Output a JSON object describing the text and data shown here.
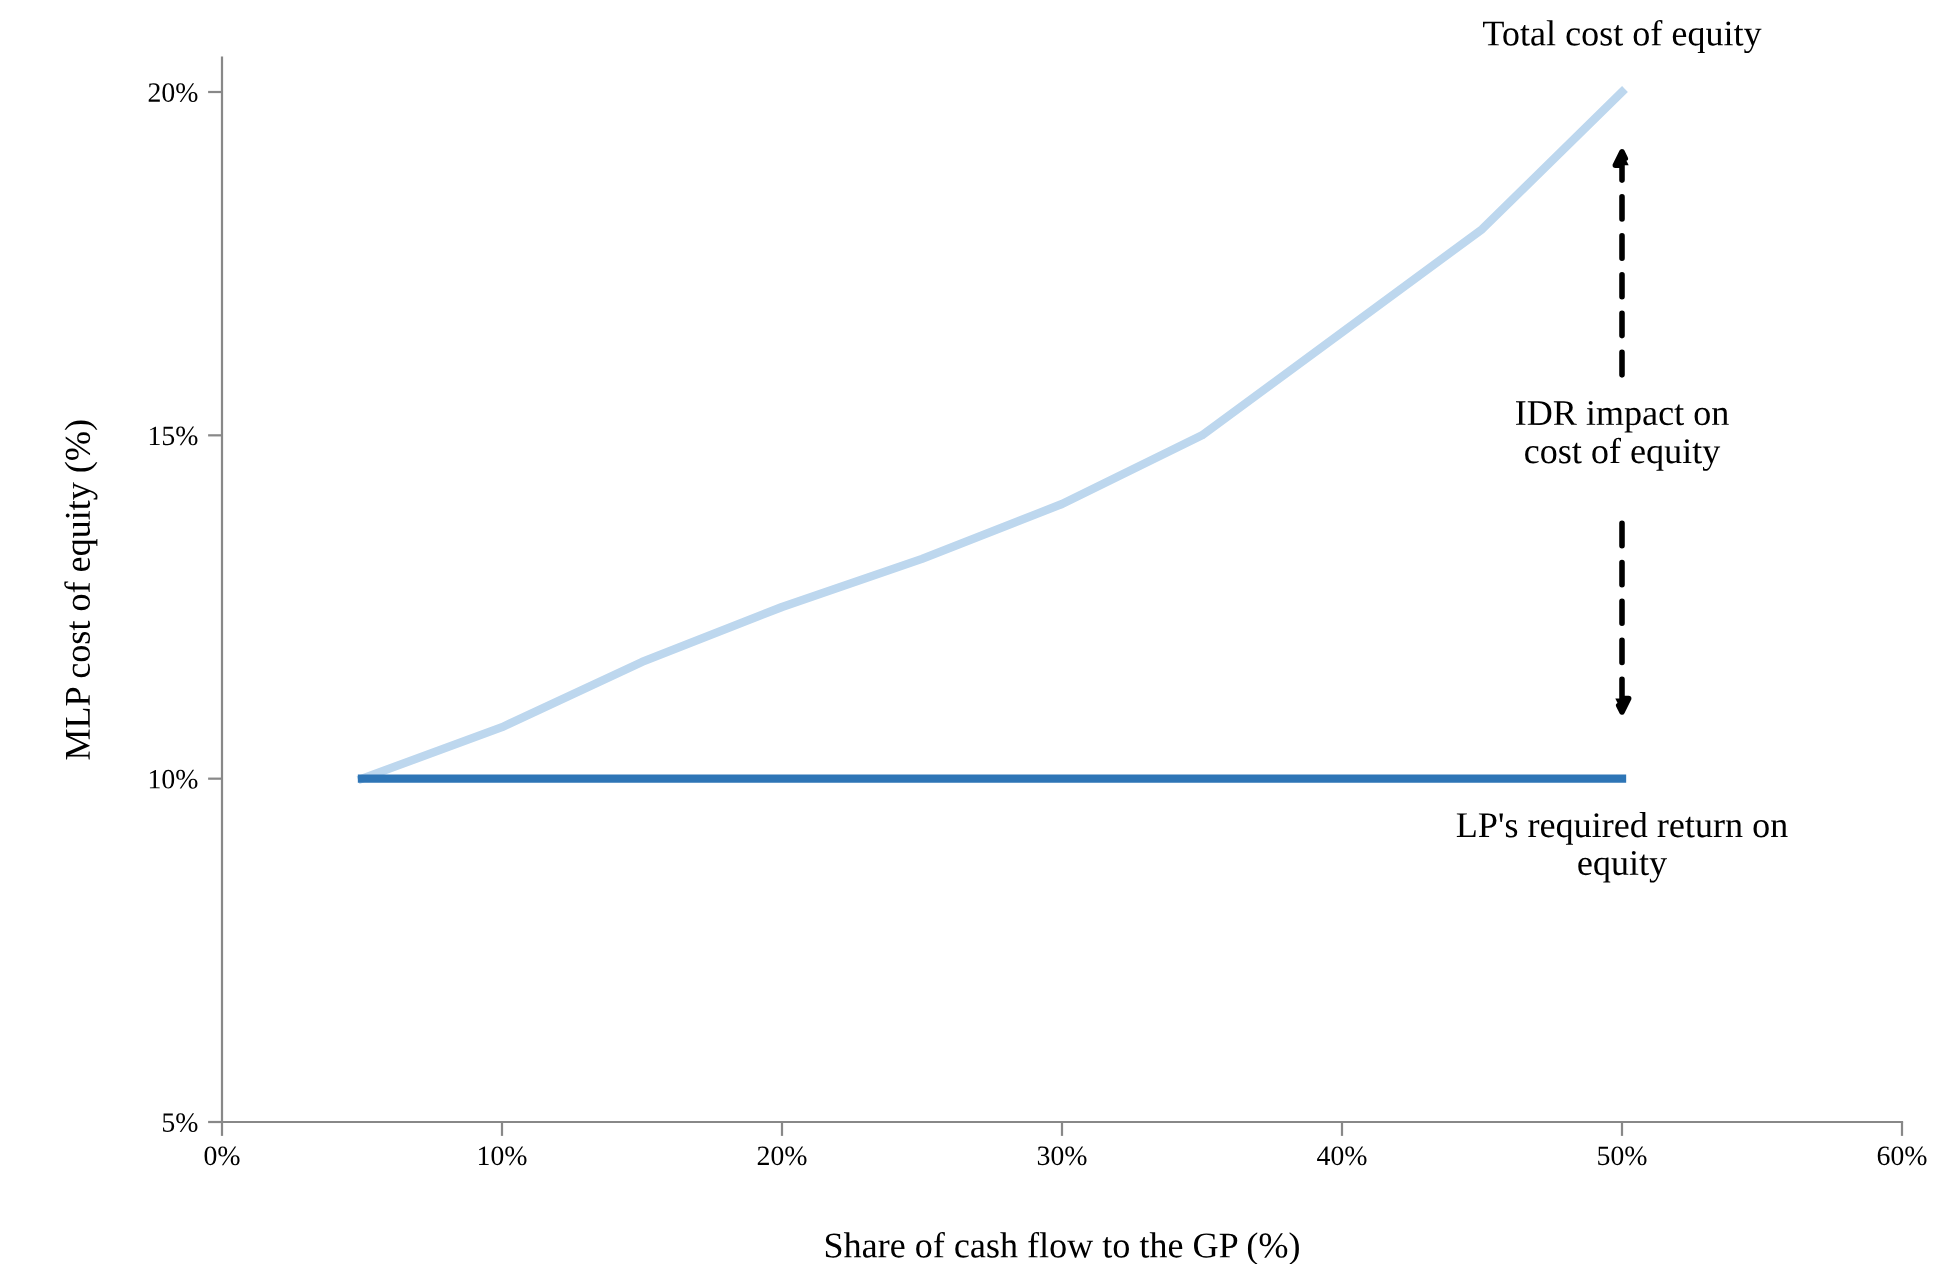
{
  "chart_data": {
    "type": "line",
    "xlabel": "Share of cash flow to the GP (%)",
    "ylabel": "MLP cost of equity (%)",
    "x": [
      5,
      10,
      15,
      20,
      25,
      30,
      35,
      40,
      45,
      50
    ],
    "series": [
      {
        "color": "#bdd7ee",
        "values": [
          10,
          10.75,
          11.7,
          12.5,
          13.2,
          14.0,
          15.0,
          16.5,
          18.0,
          20
        ]
      },
      {
        "color": "#2e75b6",
        "values": [
          10,
          10,
          10,
          10,
          10,
          10,
          10,
          10,
          10,
          10
        ]
      }
    ],
    "xlim": [
      0,
      60
    ],
    "xticks": [
      {
        "value": 0,
        "label": "0%"
      },
      {
        "value": 10,
        "label": "10%"
      },
      {
        "value": 20,
        "label": "20%"
      },
      {
        "value": 30,
        "label": "30%"
      },
      {
        "value": 40,
        "label": "40%"
      },
      {
        "value": 50,
        "label": "50%"
      },
      {
        "value": 60,
        "label": "60%"
      }
    ],
    "ylim": [
      5,
      20.5
    ],
    "yticks": [
      {
        "value": 5,
        "label": "5%"
      },
      {
        "value": 10,
        "label": "10%"
      },
      {
        "value": 15,
        "label": "15%"
      },
      {
        "value": 20,
        "label": "20%"
      }
    ],
    "annotations": [
      "Total cost of equity",
      "IDR impact on\ncost of equity",
      "LP's required return on\nequity"
    ],
    "grid": false,
    "legend": false,
    "marker": "none",
    "line_style": "solid"
  }
}
